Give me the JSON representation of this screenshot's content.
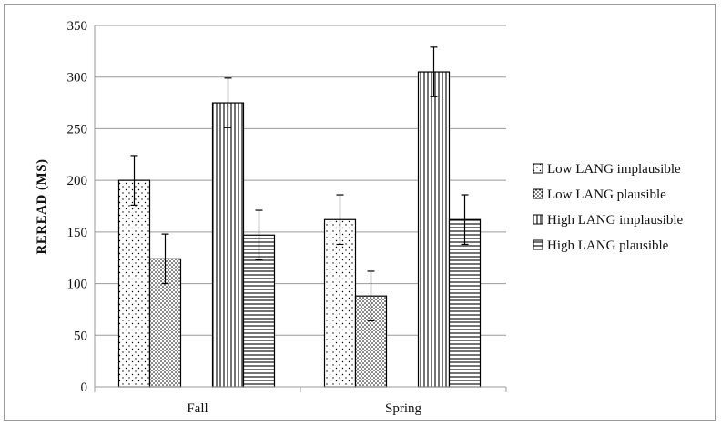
{
  "chart_data": {
    "type": "bar",
    "title": "",
    "xlabel": "",
    "ylabel": "REREAD (MS)",
    "ylim": [
      0,
      350
    ],
    "yticks": [
      0,
      50,
      100,
      150,
      200,
      250,
      300,
      350
    ],
    "grid": "horizontal",
    "legend_position": "right",
    "categories": [
      "Fall",
      "Spring"
    ],
    "series": [
      {
        "name": "Low LANG implausible",
        "pattern": "dots",
        "values": [
          200,
          162
        ],
        "error": [
          24,
          24
        ]
      },
      {
        "name": "Low LANG plausible",
        "pattern": "dense-dots",
        "values": [
          124,
          88
        ],
        "error": [
          24,
          24
        ]
      },
      {
        "name": "High LANG implausible",
        "pattern": "vertical-lines",
        "values": [
          275,
          305
        ],
        "error": [
          24,
          24
        ]
      },
      {
        "name": "High LANG plausible",
        "pattern": "horizontal-lines",
        "values": [
          147,
          162
        ],
        "error": [
          24,
          24
        ]
      }
    ],
    "colors": {
      "stroke": "#000000",
      "grid": "#9a9a9a",
      "fill": "#ffffff"
    }
  }
}
